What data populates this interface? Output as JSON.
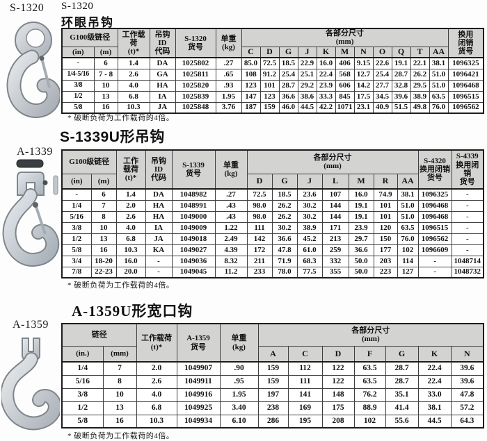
{
  "footnote": "* 破断负荷为工作载荷的4倍。",
  "figures": [
    {
      "label": "S-1320",
      "image": "eye-hook"
    },
    {
      "label": "A-1339",
      "image": "clevis-sling-hook"
    },
    {
      "label": "A-1359",
      "image": "foundry-hook"
    }
  ],
  "sections": [
    {
      "title_line1": "S-1320",
      "title_line2": "环眼吊钩",
      "table": {
        "headers": {
          "chain": "G100级链径",
          "unit_in": "(in)",
          "unit_m": "(m)",
          "wll": "工作载荷\n(t)*",
          "id_code": "吊钩\nID\n代码",
          "part_no": "S-1320\n货号",
          "weight": "单重\n(kg)",
          "dims": "各部分尺寸\n(mm)",
          "dim_cols": [
            "C",
            "D",
            "G",
            "J",
            "K",
            "M",
            "N",
            "O",
            "Q",
            "T",
            "AA"
          ],
          "latch": "换用\n闭销\n货号"
        },
        "rows": [
          [
            "-",
            "6",
            "1.4",
            "DA",
            "1025802",
            ".27",
            "85.0",
            "72.5",
            "18.5",
            "22.9",
            "16.0",
            "406",
            "9.15",
            "22.6",
            "19.1",
            "22.1",
            "38.1",
            "1096325"
          ],
          [
            "1/4-5/16",
            "7 - 8",
            "2.6",
            "GA",
            "1025811",
            ".65",
            "108",
            "91.2",
            "25.4",
            "25.1",
            "22.4",
            "568",
            "12.7",
            "25.4",
            "28.7",
            "26.2",
            "51.0",
            "1096421"
          ],
          [
            "3/8",
            "10",
            "4.0",
            "HA",
            "1025820",
            ".93",
            "123",
            "101",
            "28.7",
            "29.2",
            "23.9",
            "606",
            "14.2",
            "27.7",
            "32.8",
            "29.5",
            "51.0",
            "1096468"
          ],
          [
            "1/2",
            "13",
            "6.8",
            "IA",
            "1025839",
            "1.95",
            "147",
            "123",
            "36.6",
            "38.6",
            "33.3",
            "845",
            "17.5",
            "34.5",
            "39.6",
            "38.9",
            "63.5",
            "1096515"
          ],
          [
            "5/8",
            "16",
            "10.3",
            "JA",
            "1025848",
            "3.76",
            "187",
            "159",
            "46.0",
            "44.5",
            "42.2",
            "1071",
            "23.1",
            "40.9",
            "51.5",
            "49.8",
            "76.0",
            "1096562"
          ]
        ]
      }
    },
    {
      "title": "S-1339U形吊钩",
      "table": {
        "headers": {
          "chain": "G100级链径",
          "unit_in": "(in)",
          "unit_m": "(m)",
          "wll": "工作\n载荷\n(t)*",
          "id_code": "吊钩\nID\n代码",
          "part_no": "S-1339\n货号",
          "weight": "单重\n(kg)",
          "dims": "各部分尺寸\n(mm)",
          "dim_cols": [
            "D",
            "G",
            "J",
            "L",
            "M",
            "R",
            "AA"
          ],
          "s4320": "S-4320\n换用闭销\n货号",
          "s4339": "S-4339\n换用闭销\n货号"
        },
        "rows": [
          [
            "-",
            "6",
            "1.4",
            "DA",
            "1048982",
            ".27",
            "72.5",
            "18.5",
            "23.6",
            "107",
            "16.0",
            "74.9",
            "38.1",
            "1096325",
            "-"
          ],
          [
            "1/4",
            "7",
            "2.0",
            "HA",
            "1048991",
            ".43",
            "98.0",
            "26.2",
            "30.2",
            "144",
            "19.1",
            "101",
            "51.0",
            "1096468",
            "-"
          ],
          [
            "5/16",
            "8",
            "2.6",
            "HA",
            "1049000",
            ".43",
            "98.0",
            "26.2",
            "30.2",
            "144",
            "19.1",
            "101",
            "51.0",
            "1096468",
            "-"
          ],
          [
            "3/8",
            "10",
            "4.0",
            "IA",
            "1049009",
            "1.22",
            "111",
            "30.2",
            "38.9",
            "171",
            "23.9",
            "120",
            "63.5",
            "1096515",
            "-"
          ],
          [
            "1/2",
            "13",
            "6.8",
            "JA",
            "1049018",
            "2.49",
            "142",
            "36.6",
            "45.2",
            "213",
            "29.7",
            "150",
            "76.0",
            "1096562",
            "-"
          ],
          [
            "5/8",
            "16",
            "10.3",
            "KA",
            "1049027",
            "4.39",
            "172",
            "47.8",
            "61.0",
            "259",
            "36.6",
            "177",
            "102",
            "1096609",
            "-"
          ],
          [
            "3/4",
            "18-20",
            "16.0",
            "-",
            "1049036",
            "8.32",
            "211",
            "71.9",
            "68.3",
            "332",
            "50.0",
            "203",
            "114",
            "-",
            "1048714"
          ],
          [
            "7/8",
            "22-23",
            "20.0",
            "-",
            "1049045",
            "11.2",
            "233",
            "78.0",
            "77.5",
            "355",
            "50.0",
            "223",
            "127",
            "-",
            "1048732"
          ]
        ]
      }
    },
    {
      "title": "A-1359U形宽口钩",
      "table": {
        "headers": {
          "chain": "链径",
          "unit_in": "(in.)",
          "unit_m": "(mm)",
          "wll": "工作载荷\n(t)*",
          "part_no": "A-1359\n货号",
          "weight": "单重\n(kg)",
          "dims": "各部分尺寸\n(mm)",
          "dim_cols": [
            "A",
            "C",
            "D",
            "F",
            "G",
            "K",
            "N"
          ]
        },
        "rows": [
          [
            "1/4",
            "7",
            "2.0",
            "1049907",
            ".90",
            "159",
            "112",
            "122",
            "63.5",
            "28.7",
            "22.4",
            "39.6"
          ],
          [
            "5/16",
            "8",
            "2.6",
            "1049911",
            ".95",
            "159",
            "111",
            "122",
            "63.5",
            "28.7",
            "22.4",
            "39.6"
          ],
          [
            "3/8",
            "10",
            "4.0",
            "1049916",
            "1.95",
            "197",
            "141",
            "148",
            "76.2",
            "35.1",
            "33.0",
            "47.8"
          ],
          [
            "1/2",
            "13",
            "6.8",
            "1049925",
            "3.40",
            "238",
            "169",
            "175",
            "88.9",
            "41.4",
            "38.1",
            "57.2"
          ],
          [
            "5/8",
            "16",
            "10.3",
            "1049934",
            "6.10",
            "286",
            "195",
            "208",
            "102",
            "55.6",
            "44.5",
            "64.3"
          ]
        ]
      }
    }
  ]
}
